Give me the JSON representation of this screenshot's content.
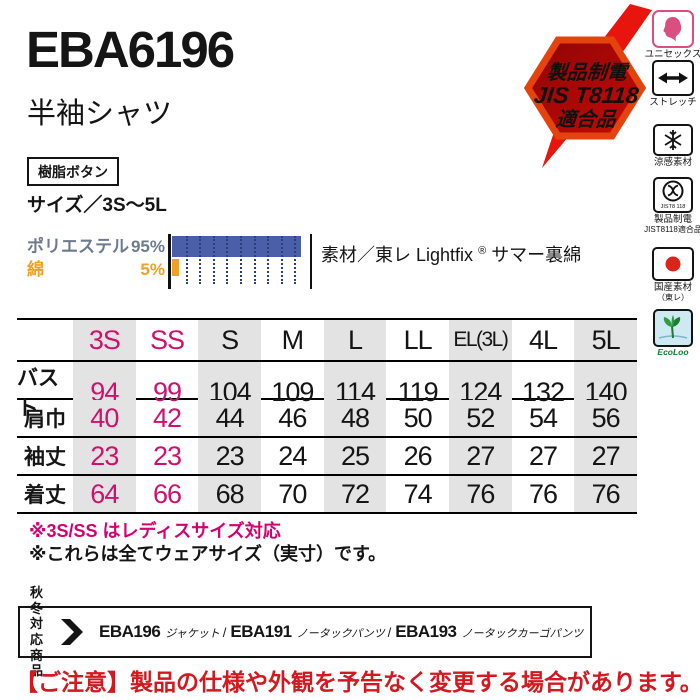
{
  "colors": {
    "accent_magenta": "#cf116e",
    "note_magenta": "#d4006f",
    "bar_blue": "#4a5fa8",
    "bar_orange": "#f0a125",
    "poly_label_gray": "#6e7b8e",
    "notice_red": "#d3181f",
    "unisex_pink": "#d94f7e",
    "eco_green": "#157a2e",
    "table_shade": "#e3e3e3",
    "badge_red": "#e8150f"
  },
  "product": {
    "code": "EBA6196",
    "name": "半袖シャツ",
    "button_tag": "樹脂ボタン",
    "size_range": "サイズ／3S～5L"
  },
  "material": {
    "composition": [
      {
        "name": "ポリエステル",
        "percent": "95%",
        "value": 95,
        "color": "#4a5fa8",
        "label_color": "#6e7b8e"
      },
      {
        "name": "綿",
        "percent": "5%",
        "value": 5,
        "color": "#f0a125",
        "label_color": "#f0a125"
      }
    ],
    "fabric_prefix": "素材／東レ Lightfix",
    "fabric_reg": "®",
    "fabric_suffix": "サマー裏綿"
  },
  "antistatic_badge": {
    "line1": "製品制電",
    "line2": "JIS T8118",
    "line3": "適合品"
  },
  "icons": [
    {
      "name": "unisex-icon",
      "label_lines": [
        "ユニセックス"
      ]
    },
    {
      "name": "stretch-icon",
      "label_lines": [
        "ストレッチ"
      ]
    },
    {
      "name": "cool-material-icon",
      "label_lines": [
        "涼感素材"
      ]
    },
    {
      "name": "antistatic-icon",
      "box_text": "JIST8 118",
      "label_lines": [
        "製品制電",
        "JIST8118適合品"
      ]
    },
    {
      "name": "domestic-material-icon",
      "label_lines": [
        "国産素材",
        "（東レ）"
      ]
    },
    {
      "name": "eco-icon",
      "label_lines": [
        "EcoLoo"
      ]
    }
  ],
  "size_table": {
    "columns": [
      "3S",
      "SS",
      "S",
      "M",
      "L",
      "LL",
      "EL(3L)",
      "4L",
      "5L"
    ],
    "ladies_columns": 2,
    "rows": [
      {
        "label": "バスト",
        "values": [
          94,
          99,
          104,
          109,
          114,
          119,
          124,
          132,
          140
        ]
      },
      {
        "label": "肩巾",
        "values": [
          40,
          42,
          44,
          46,
          48,
          50,
          52,
          54,
          56
        ]
      },
      {
        "label": "袖丈",
        "values": [
          23,
          23,
          23,
          24,
          25,
          26,
          27,
          27,
          27
        ]
      },
      {
        "label": "着丈",
        "values": [
          64,
          66,
          68,
          70,
          72,
          74,
          76,
          76,
          76
        ]
      }
    ]
  },
  "notes": [
    "※3S/SS はレディスサイズ対応",
    "※これらは全てウェアサイズ（実寸）です。"
  ],
  "related": {
    "category_line1": "秋冬対応",
    "category_line2": "商品",
    "items": [
      {
        "code": "EBA196",
        "name": "ジャケット"
      },
      {
        "code": "EBA191",
        "name": "ノータックパンツ"
      },
      {
        "code": "EBA193",
        "name": "ノータックカーゴパンツ"
      }
    ]
  },
  "notice": "【ご注意】製品の仕様や外観を予告なく変更する場合があります。"
}
